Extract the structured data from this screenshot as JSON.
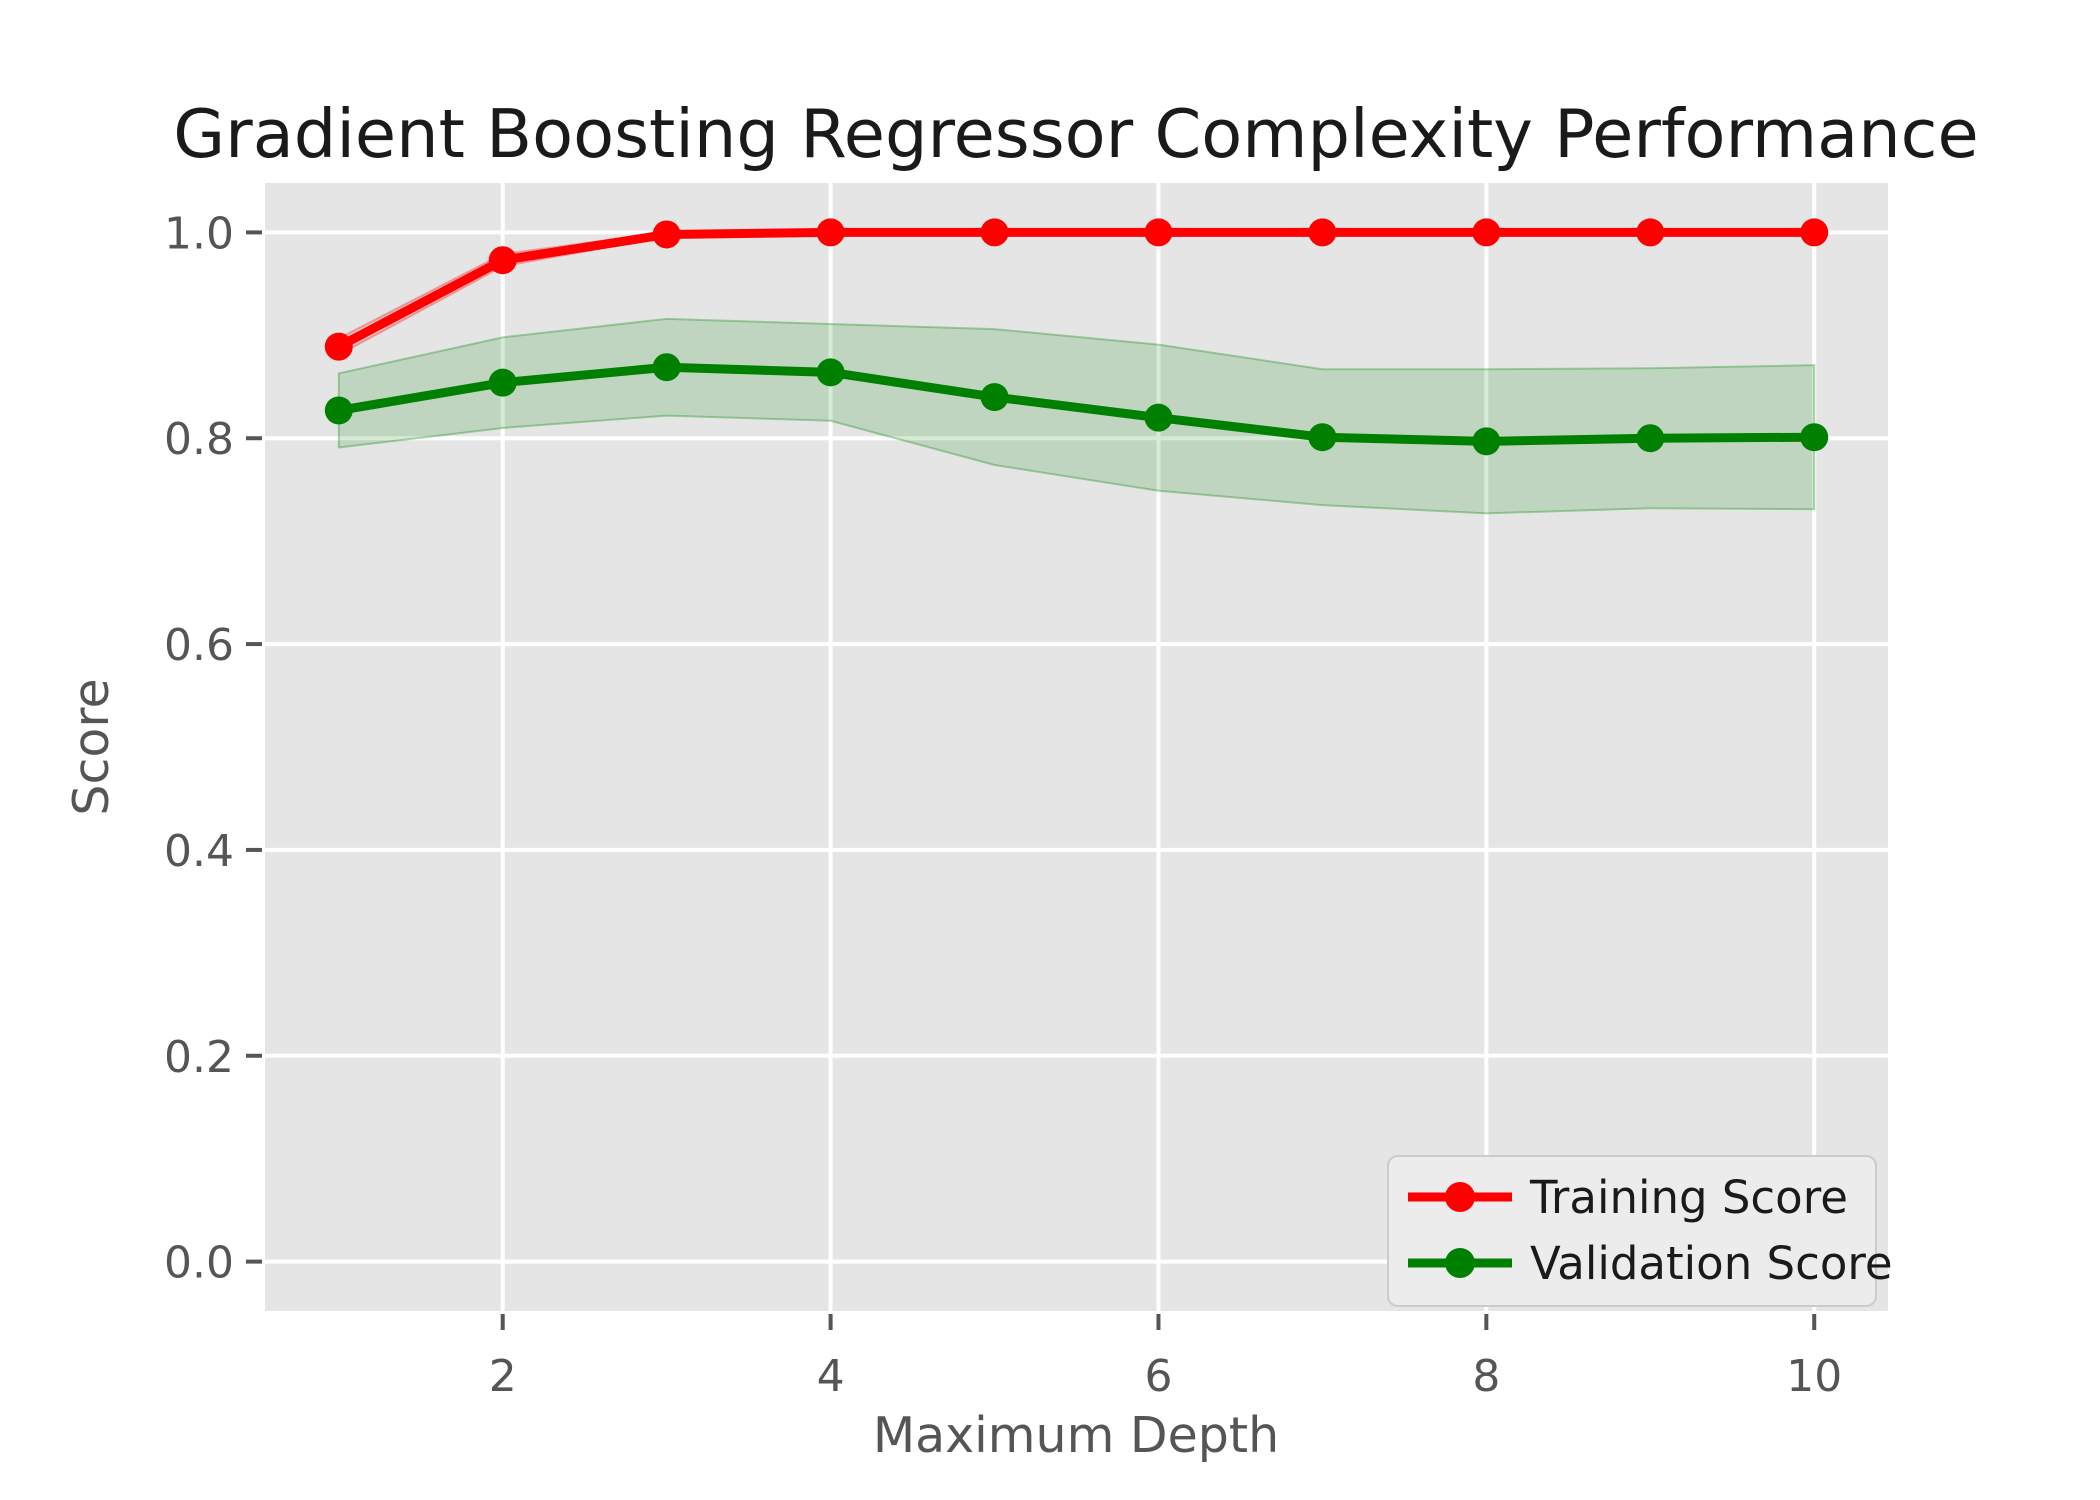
{
  "figure": {
    "title": "Gradient Boosting Regressor Complexity Performance",
    "xlabel": "Maximum Depth",
    "ylabel": "Score"
  },
  "chart_data": {
    "type": "line",
    "title": "Gradient Boosting Regressor Complexity Performance",
    "xlabel": "Maximum Depth",
    "ylabel": "Score",
    "x": [
      1,
      2,
      3,
      4,
      5,
      6,
      7,
      8,
      9,
      10
    ],
    "xtick_labels": [
      "2",
      "4",
      "6",
      "8",
      "10"
    ],
    "xticks": [
      2,
      4,
      6,
      8,
      10
    ],
    "ytick_labels": [
      "0.0",
      "0.2",
      "0.4",
      "0.6",
      "0.8",
      "1.0"
    ],
    "yticks": [
      0.0,
      0.2,
      0.4,
      0.6,
      0.8,
      1.0
    ],
    "xlim": [
      0.55,
      10.45
    ],
    "ylim": [
      -0.048,
      1.048
    ],
    "grid": true,
    "legend_position": "lower right",
    "series": [
      {
        "name": "Training Score",
        "color": "#FF0000",
        "values": [
          0.889,
          0.973,
          0.998,
          1.0,
          1.0,
          1.0,
          1.0,
          1.0,
          1.0,
          1.0
        ],
        "band_halfwidth": [
          0.008,
          0.006,
          0.002,
          0.001,
          0.001,
          0.001,
          0.001,
          0.001,
          0.001,
          0.001
        ],
        "band_alpha": 0.15
      },
      {
        "name": "Validation Score",
        "color": "#008000",
        "values": [
          0.827,
          0.854,
          0.869,
          0.864,
          0.84,
          0.82,
          0.801,
          0.797,
          0.8,
          0.801
        ],
        "band_halfwidth": [
          0.036,
          0.044,
          0.047,
          0.047,
          0.066,
          0.071,
          0.066,
          0.07,
          0.068,
          0.07
        ],
        "band_alpha": 0.16
      }
    ],
    "styling": {
      "axes_bg": "#E5E5E5",
      "grid_color": "#FFFFFF",
      "tick_color": "#555555",
      "tick_label_color": "#555555",
      "axis_label_color": "#555555",
      "title_color": "#1A1A1A",
      "legend_bg": "#ECECEC",
      "legend_border": "#CBCBCB",
      "legend_text_color": "#1A1A1A",
      "figure_bg": "#FFFFFF"
    }
  }
}
